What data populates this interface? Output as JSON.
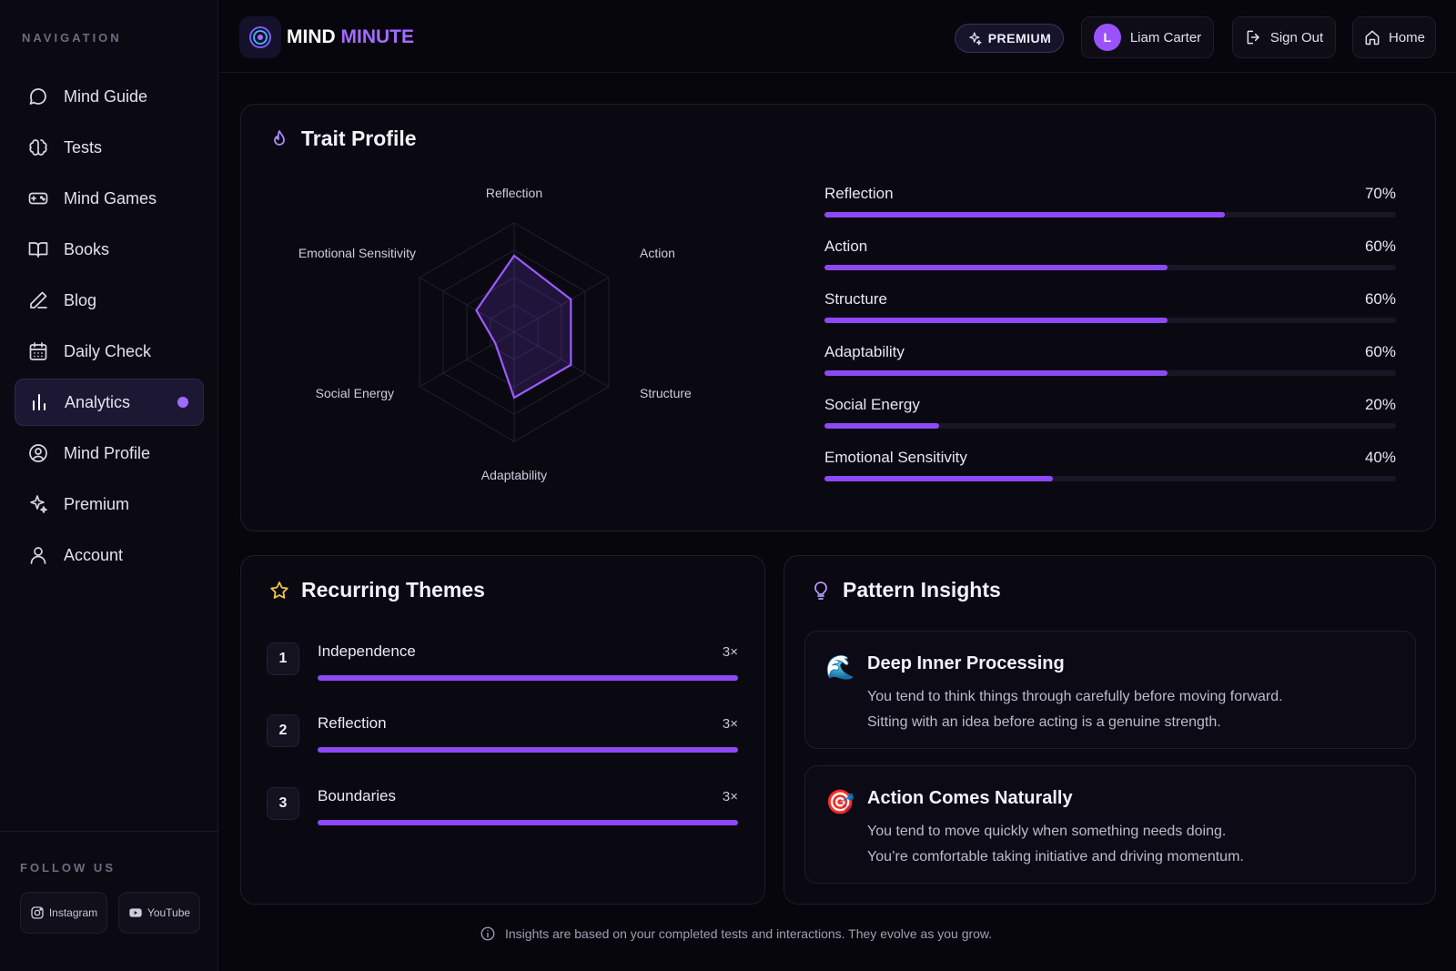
{
  "sidebar": {
    "heading": "NAVIGATION",
    "items": [
      {
        "label": "Mind Guide",
        "icon": "chat-bubble-icon"
      },
      {
        "label": "Tests",
        "icon": "brain-icon"
      },
      {
        "label": "Mind Games",
        "icon": "gamepad-icon"
      },
      {
        "label": "Books",
        "icon": "book-icon"
      },
      {
        "label": "Blog",
        "icon": "pen-icon"
      },
      {
        "label": "Daily Check",
        "icon": "calendar-icon"
      },
      {
        "label": "Analytics",
        "icon": "bar-chart-icon",
        "active": true
      },
      {
        "label": "Mind Profile",
        "icon": "user-circle-icon"
      },
      {
        "label": "Premium",
        "icon": "sparkles-icon"
      },
      {
        "label": "Account",
        "icon": "user-icon"
      }
    ],
    "follow_heading": "FOLLOW US",
    "social": {
      "instagram": "Instagram",
      "youtube": "YouTube"
    }
  },
  "header": {
    "brand_part1": "MIND",
    "brand_part2": "MINUTE",
    "premium_label": "PREMIUM",
    "user_initial": "L",
    "user_name": "Liam Carter",
    "sign_out_label": "Sign Out",
    "home_label": "Home"
  },
  "trait_profile": {
    "title": "Trait Profile",
    "traits": [
      {
        "label": "Reflection",
        "pct_label": "70%",
        "value": 0.7
      },
      {
        "label": "Action",
        "pct_label": "60%",
        "value": 0.6
      },
      {
        "label": "Structure",
        "pct_label": "60%",
        "value": 0.6
      },
      {
        "label": "Adaptability",
        "pct_label": "60%",
        "value": 0.6
      },
      {
        "label": "Social Energy",
        "pct_label": "20%",
        "value": 0.2
      },
      {
        "label": "Emotional Sensitivity",
        "pct_label": "40%",
        "value": 0.4
      }
    ]
  },
  "chart_data": {
    "type": "radar",
    "axes": [
      "Reflection",
      "Action",
      "Structure",
      "Adaptability",
      "Social Energy",
      "Emotional Sensitivity"
    ],
    "values": [
      70,
      60,
      60,
      60,
      20,
      40
    ],
    "range": [
      0,
      100
    ]
  },
  "themes": {
    "title": "Recurring Themes",
    "items": [
      {
        "rank": "1",
        "name": "Independence",
        "count": "3×",
        "value": 1.0
      },
      {
        "rank": "2",
        "name": "Reflection",
        "count": "3×",
        "value": 1.0
      },
      {
        "rank": "3",
        "name": "Boundaries",
        "count": "3×",
        "value": 1.0
      }
    ]
  },
  "insights": {
    "title": "Pattern Insights",
    "items": [
      {
        "emoji": "🌊",
        "title": "Deep Inner Processing",
        "line1": "You tend to think things through carefully before moving forward.",
        "line2": "Sitting with an idea before acting is a genuine strength."
      },
      {
        "emoji": "🎯",
        "title": "Action Comes Naturally",
        "line1": "You tend to move quickly when something needs doing.",
        "line2": "You’re comfortable taking initiative and driving momentum."
      }
    ]
  },
  "footer": {
    "note": "Insights are based on your completed tests and interactions. They evolve as you grow."
  },
  "colors": {
    "accent": "#8d49f5",
    "brand_accent": "#a46cff",
    "background": "#07060c"
  }
}
